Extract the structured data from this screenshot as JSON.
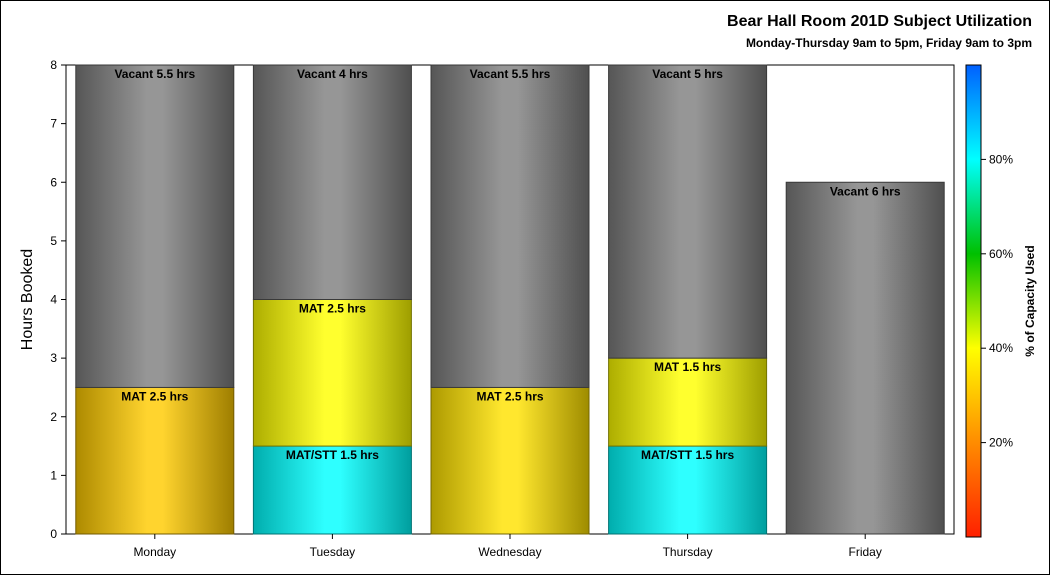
{
  "chart_data": {
    "type": "bar",
    "stacked": true,
    "title": "Bear Hall Room 201D Subject Utilization",
    "subtitle": "Monday-Thursday 9am to 5pm, Friday 9am to 3pm",
    "xlabel": "",
    "ylabel": "Hours Booked",
    "ylim": [
      0,
      8
    ],
    "yticks": [
      0,
      1,
      2,
      3,
      4,
      5,
      6,
      7,
      8
    ],
    "grid": false,
    "categories": [
      "Monday",
      "Tuesday",
      "Wednesday",
      "Thursday",
      "Friday"
    ],
    "bars": [
      {
        "category": "Monday",
        "segments": [
          {
            "label": "MAT 2.5 hrs",
            "value": 2.5,
            "capacity_pct": 31
          },
          {
            "label": "Vacant 5.5 hrs",
            "value": 5.5,
            "vacant": true
          }
        ]
      },
      {
        "category": "Tuesday",
        "segments": [
          {
            "label": "MAT/STT 1.5 hrs",
            "value": 1.5,
            "capacity_pct": 80
          },
          {
            "label": "MAT 2.5 hrs",
            "value": 2.5,
            "capacity_pct": 40
          },
          {
            "label": "Vacant 4 hrs",
            "value": 4,
            "vacant": true
          }
        ]
      },
      {
        "category": "Wednesday",
        "segments": [
          {
            "label": "MAT 2.5 hrs",
            "value": 2.5,
            "capacity_pct": 35
          },
          {
            "label": "Vacant 5.5 hrs",
            "value": 5.5,
            "vacant": true
          }
        ]
      },
      {
        "category": "Thursday",
        "segments": [
          {
            "label": "MAT/STT 1.5 hrs",
            "value": 1.5,
            "capacity_pct": 80
          },
          {
            "label": "MAT 1.5 hrs",
            "value": 1.5,
            "capacity_pct": 40
          },
          {
            "label": "Vacant 5 hrs",
            "value": 5,
            "vacant": true
          }
        ]
      },
      {
        "category": "Friday",
        "segments": [
          {
            "label": "Vacant 6 hrs",
            "value": 6,
            "vacant": true
          }
        ]
      }
    ],
    "colorbar": {
      "label": "% of Capacity Used",
      "ticks": [
        "20%",
        "40%",
        "60%",
        "80%"
      ],
      "tick_values": [
        20,
        40,
        60,
        80
      ],
      "range": [
        0,
        100
      ],
      "colors": [
        "#ff2000",
        "#ff8c00",
        "#ffff00",
        "#00c000",
        "#00ffff",
        "#0060ff"
      ]
    },
    "vacant_color": "#7f7f7f"
  }
}
